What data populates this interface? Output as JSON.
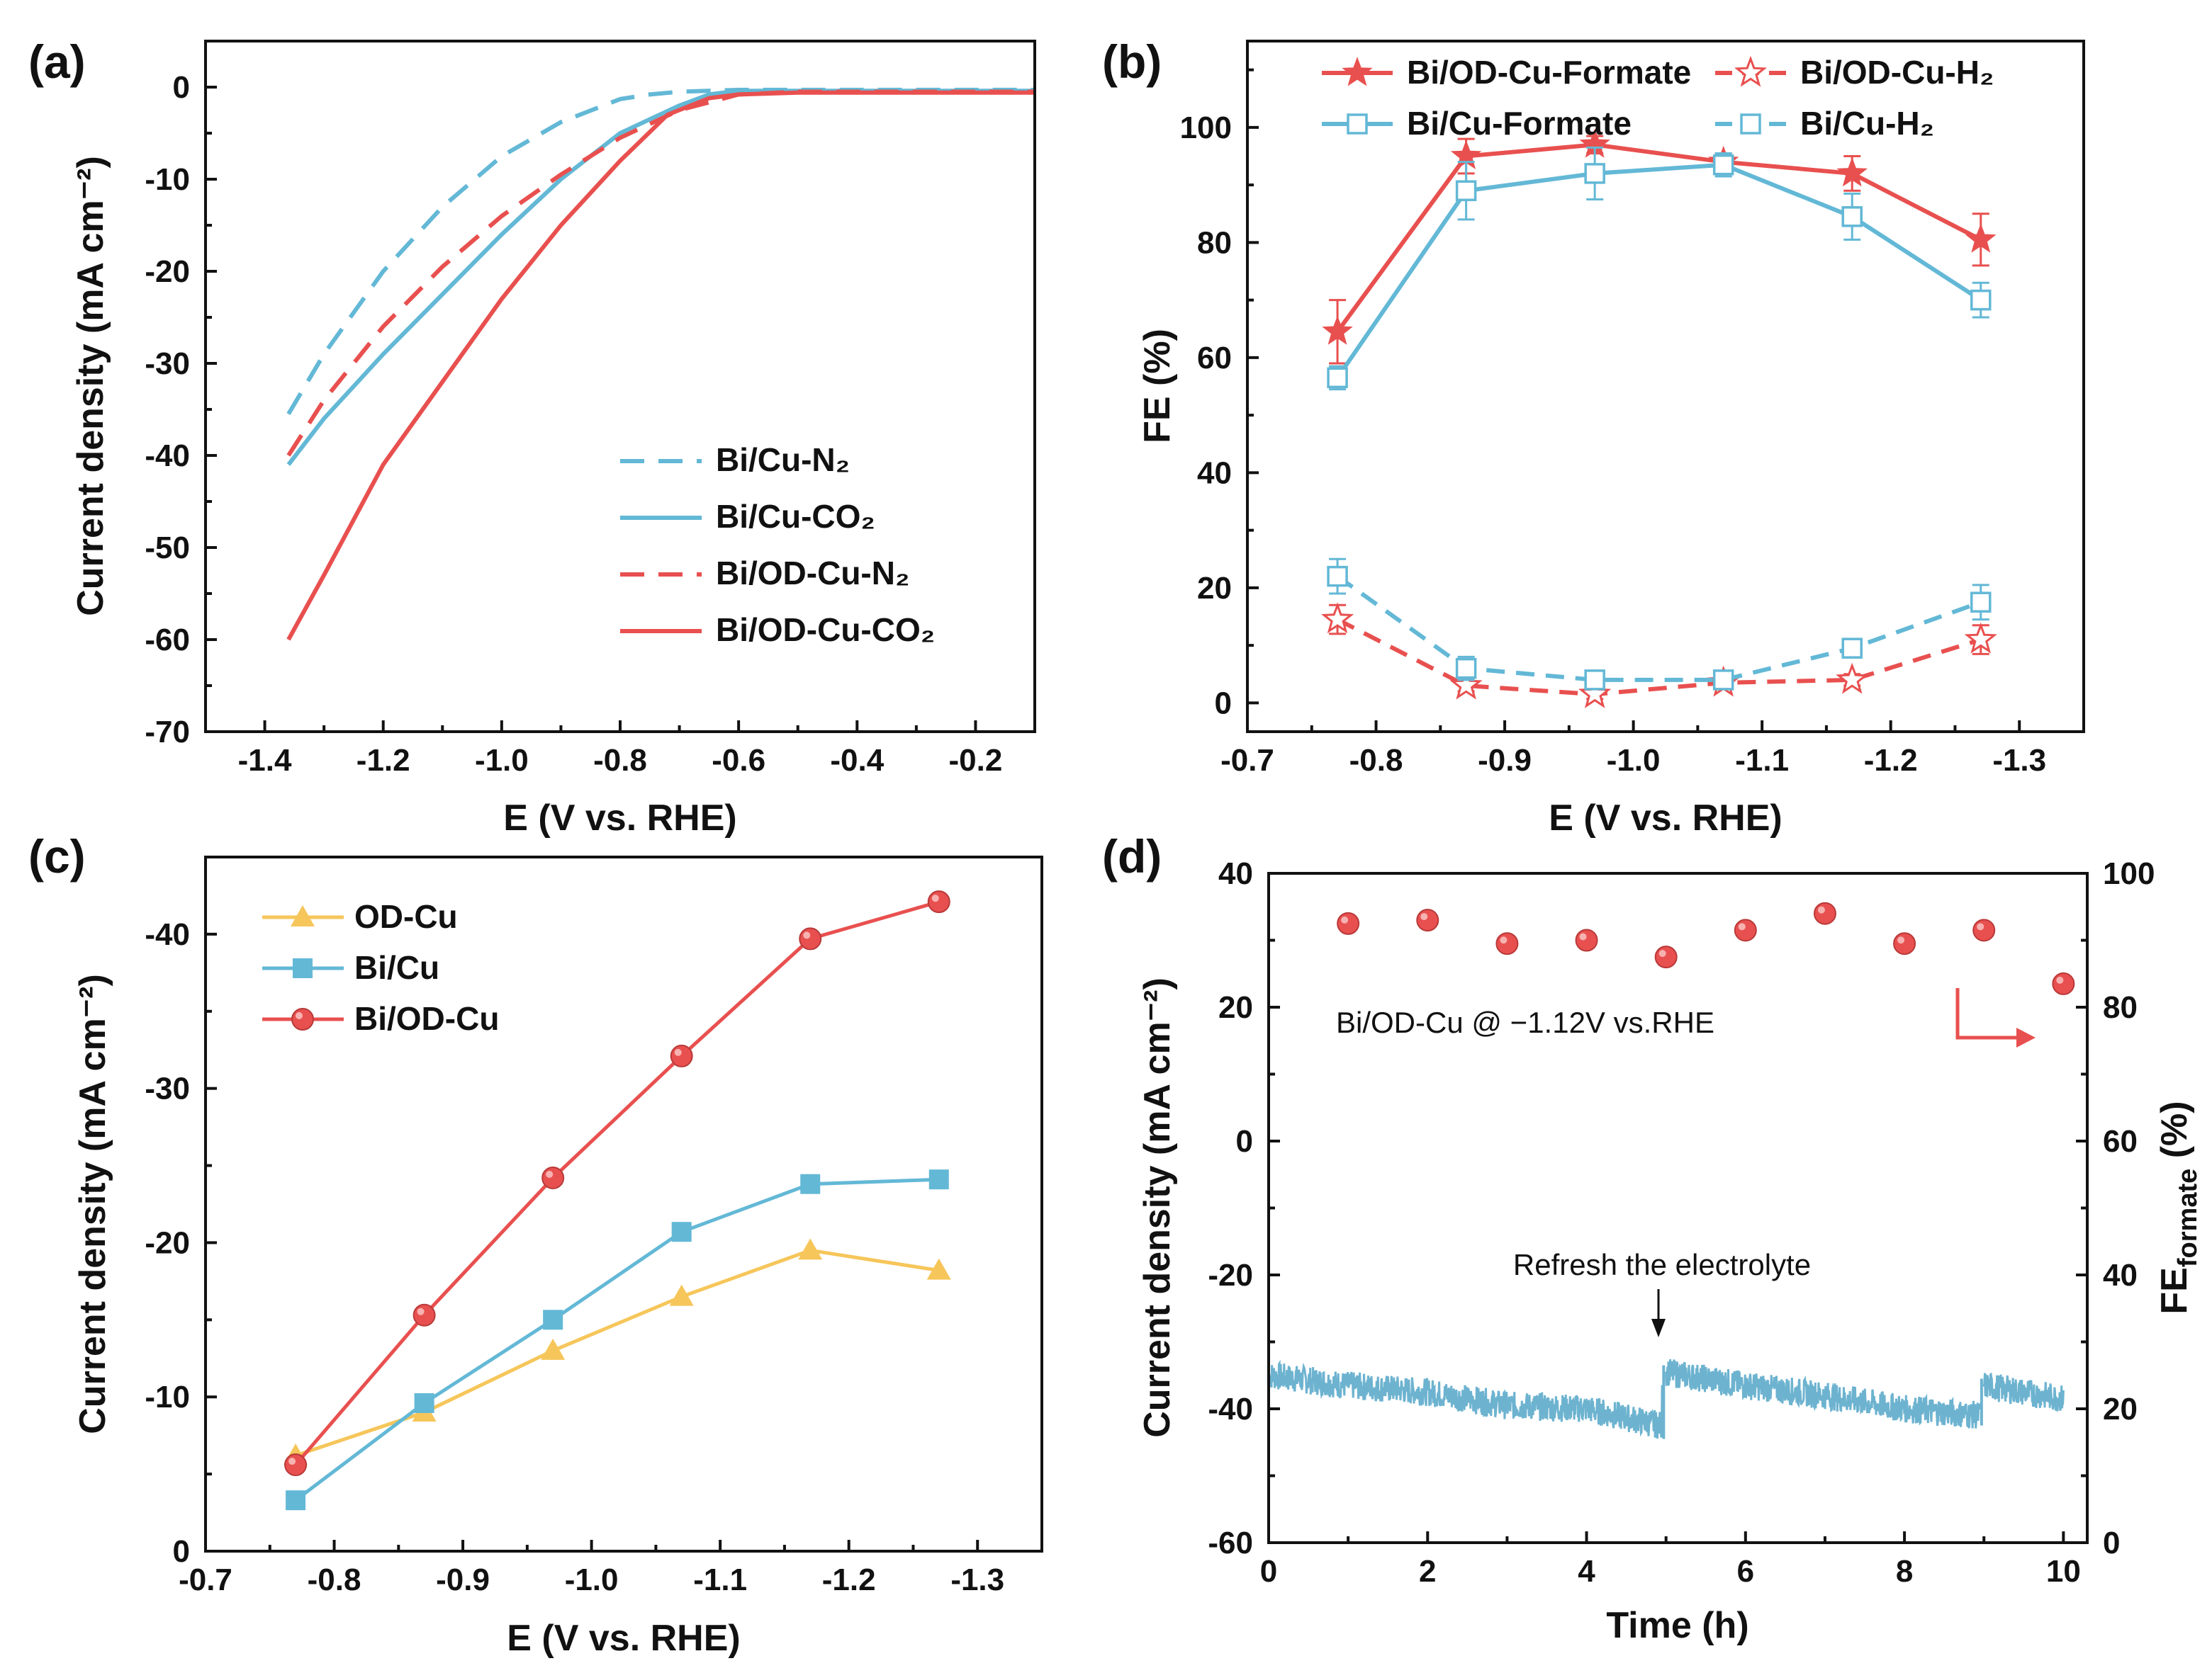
{
  "colors": {
    "red": "#e8504f",
    "blue": "#63b8d6",
    "yellow": "#f6c65a",
    "trace": "#6db3d0"
  },
  "chart_data": [
    {
      "panel": "(a)",
      "type": "line",
      "xlabel": "E (V vs. RHE)",
      "ylabel": "Current density (mA cm⁻²)",
      "xlim": [
        -1.5,
        -0.1
      ],
      "ylim": [
        -70,
        5
      ],
      "xticks": [
        "-1.4",
        "-1.2",
        "-1.0",
        "-0.8",
        "-0.6",
        "-0.4",
        "-0.2"
      ],
      "yticks": [
        "0",
        "-10",
        "-20",
        "-30",
        "-40",
        "-50",
        "-60",
        "-70"
      ],
      "series": [
        {
          "name": "Bi/Cu-N₂",
          "color": "blue",
          "dash": true,
          "x": [
            -1.36,
            -1.3,
            -1.2,
            -1.1,
            -1.0,
            -0.9,
            -0.8,
            -0.75,
            -0.7,
            -0.6,
            -0.5,
            -0.4,
            -0.3,
            -0.2,
            -0.1
          ],
          "y": [
            -35.5,
            -29,
            -20,
            -13,
            -7.5,
            -3.8,
            -1.3,
            -0.8,
            -0.5,
            -0.3,
            -0.3,
            -0.3,
            -0.3,
            -0.3,
            -0.3
          ]
        },
        {
          "name": "Bi/Cu-CO₂",
          "color": "blue",
          "dash": false,
          "x": [
            -1.36,
            -1.3,
            -1.2,
            -1.1,
            -1.0,
            -0.9,
            -0.8,
            -0.7,
            -0.65,
            -0.6,
            -0.5,
            -0.4,
            -0.3,
            -0.2,
            -0.1
          ],
          "y": [
            -41,
            -36,
            -29,
            -22.5,
            -16,
            -10,
            -5,
            -2,
            -0.8,
            -0.4,
            -0.4,
            -0.4,
            -0.4,
            -0.4,
            -0.4
          ]
        },
        {
          "name": "Bi/OD-Cu-N₂",
          "color": "red",
          "dash": true,
          "x": [
            -1.36,
            -1.3,
            -1.2,
            -1.1,
            -1.0,
            -0.9,
            -0.8,
            -0.7,
            -0.6,
            -0.5,
            -0.4,
            -0.3,
            -0.2,
            -0.1
          ],
          "y": [
            -40,
            -34,
            -26,
            -19.5,
            -14,
            -9.5,
            -5.5,
            -2.5,
            -0.8,
            -0.5,
            -0.5,
            -0.5,
            -0.5,
            -0.5
          ]
        },
        {
          "name": "Bi/OD-Cu-CO₂",
          "color": "red",
          "dash": false,
          "x": [
            -1.36,
            -1.3,
            -1.2,
            -1.1,
            -1.0,
            -0.9,
            -0.8,
            -0.72,
            -0.65,
            -0.6,
            -0.5,
            -0.4,
            -0.3,
            -0.2,
            -0.1
          ],
          "y": [
            -60,
            -53,
            -41,
            -32,
            -23,
            -15,
            -8,
            -3,
            -1.2,
            -0.8,
            -0.6,
            -0.6,
            -0.6,
            -0.6,
            -0.6
          ]
        }
      ]
    },
    {
      "panel": "(b)",
      "type": "line",
      "xlabel": "E (V vs. RHE)",
      "ylabel": "FE (%)",
      "xlim": [
        -0.7,
        -1.35
      ],
      "ylim": [
        -5,
        115
      ],
      "xticks": [
        "-0.7",
        "-0.8",
        "-0.9",
        "-1.0",
        "-1.1",
        "-1.2",
        "-1.3"
      ],
      "yticks": [
        "0",
        "20",
        "40",
        "60",
        "80",
        "100"
      ],
      "x": [
        -0.77,
        -0.87,
        -0.97,
        -1.07,
        -1.17,
        -1.27
      ],
      "series": [
        {
          "name": "Bi/OD-Cu-Formate",
          "color": "red",
          "marker": "star-filled",
          "dash": false,
          "values": [
            64.5,
            95,
            97,
            94,
            92,
            80.5
          ],
          "err": [
            5.5,
            3,
            1.5,
            1.5,
            3,
            4.5
          ]
        },
        {
          "name": "Bi/OD-Cu-H₂",
          "color": "red",
          "marker": "star-open",
          "dash": true,
          "values": [
            14.5,
            3,
            1.5,
            3.5,
            4,
            11
          ],
          "err": [
            2.5,
            1,
            0.8,
            1,
            1,
            2.5
          ]
        },
        {
          "name": "Bi/Cu-Formate",
          "color": "blue",
          "marker": "square-open",
          "dash": false,
          "values": [
            56.5,
            89,
            92,
            93.5,
            84.5,
            70
          ],
          "err": [
            2,
            5,
            4.5,
            2,
            4,
            3
          ]
        },
        {
          "name": "Bi/Cu-H₂",
          "color": "blue",
          "marker": "square-open",
          "dash": true,
          "values": [
            22,
            6,
            4,
            4,
            9.5,
            17.5
          ],
          "err": [
            3,
            2,
            1.5,
            1,
            1.5,
            3
          ]
        }
      ]
    },
    {
      "panel": "(c)",
      "type": "line",
      "xlabel": "E (V vs. RHE)",
      "ylabel": "Current density (mA cm⁻²)",
      "xlim": [
        -0.7,
        -1.35
      ],
      "ylim": [
        0,
        -45
      ],
      "xticks": [
        "-0.7",
        "-0.8",
        "-0.9",
        "-1.0",
        "-1.1",
        "-1.2",
        "-1.3"
      ],
      "yticks": [
        "0",
        "-10",
        "-20",
        "-30",
        "-40"
      ],
      "x": [
        -0.77,
        -0.87,
        -0.97,
        -1.07,
        -1.17,
        -1.27
      ],
      "series": [
        {
          "name": "OD-Cu",
          "color": "yellow",
          "marker": "triangle",
          "values": [
            -6.2,
            -9,
            -13,
            -16.5,
            -19.5,
            -18.2
          ]
        },
        {
          "name": "Bi/Cu",
          "color": "blue",
          "marker": "square",
          "values": [
            -3.3,
            -9.6,
            -15,
            -20.7,
            -23.8,
            -24.1
          ]
        },
        {
          "name": "Bi/OD-Cu",
          "color": "red",
          "marker": "circle",
          "values": [
            -5.6,
            -15.3,
            -24.2,
            -32.1,
            -39.7,
            -42.1
          ]
        }
      ]
    },
    {
      "panel": "(d)",
      "type": "line+scatter",
      "xlabel": "Time (h)",
      "ylabel": "Current density (mA cm⁻²)",
      "y2label": "FE",
      "y2label_sub": "formate",
      "y2label_unit": " (%)",
      "xlim": [
        0,
        10.3
      ],
      "ylim": [
        -60,
        40
      ],
      "y2lim": [
        0,
        100
      ],
      "xticks": [
        "0",
        "2",
        "4",
        "6",
        "8",
        "10"
      ],
      "yticks": [
        "-60",
        "-40",
        "-20",
        "0",
        "20",
        "40"
      ],
      "y2ticks": [
        "0",
        "20",
        "40",
        "60",
        "80",
        "100"
      ],
      "current": {
        "color": "trace",
        "segments": [
          {
            "t": [
              0,
              1,
              2,
              3,
              4,
              4.95
            ],
            "j": [
              -35,
              -36.5,
              -37.5,
              -39.5,
              -40,
              -42.5
            ]
          },
          {
            "t": [
              5,
              6,
              7,
              8,
              8.95
            ],
            "j": [
              -34.5,
              -36.5,
              -38,
              -40,
              -41
            ]
          },
          {
            "t": [
              9,
              9.5,
              10
            ],
            "j": [
              -36.5,
              -37.5,
              -38.5
            ]
          }
        ]
      },
      "fe_formate": {
        "color": "red",
        "t": [
          1,
          2,
          3,
          4,
          5,
          6,
          7,
          8,
          9,
          10
        ],
        "values": [
          92.5,
          93,
          89.5,
          90,
          87.5,
          91.5,
          94,
          89.5,
          91.5,
          83.5
        ]
      },
      "annotations": {
        "condition": "Bi/OD-Cu @ −1.12V vs.RHE",
        "refresh": "Refresh the electrolyte"
      }
    }
  ]
}
